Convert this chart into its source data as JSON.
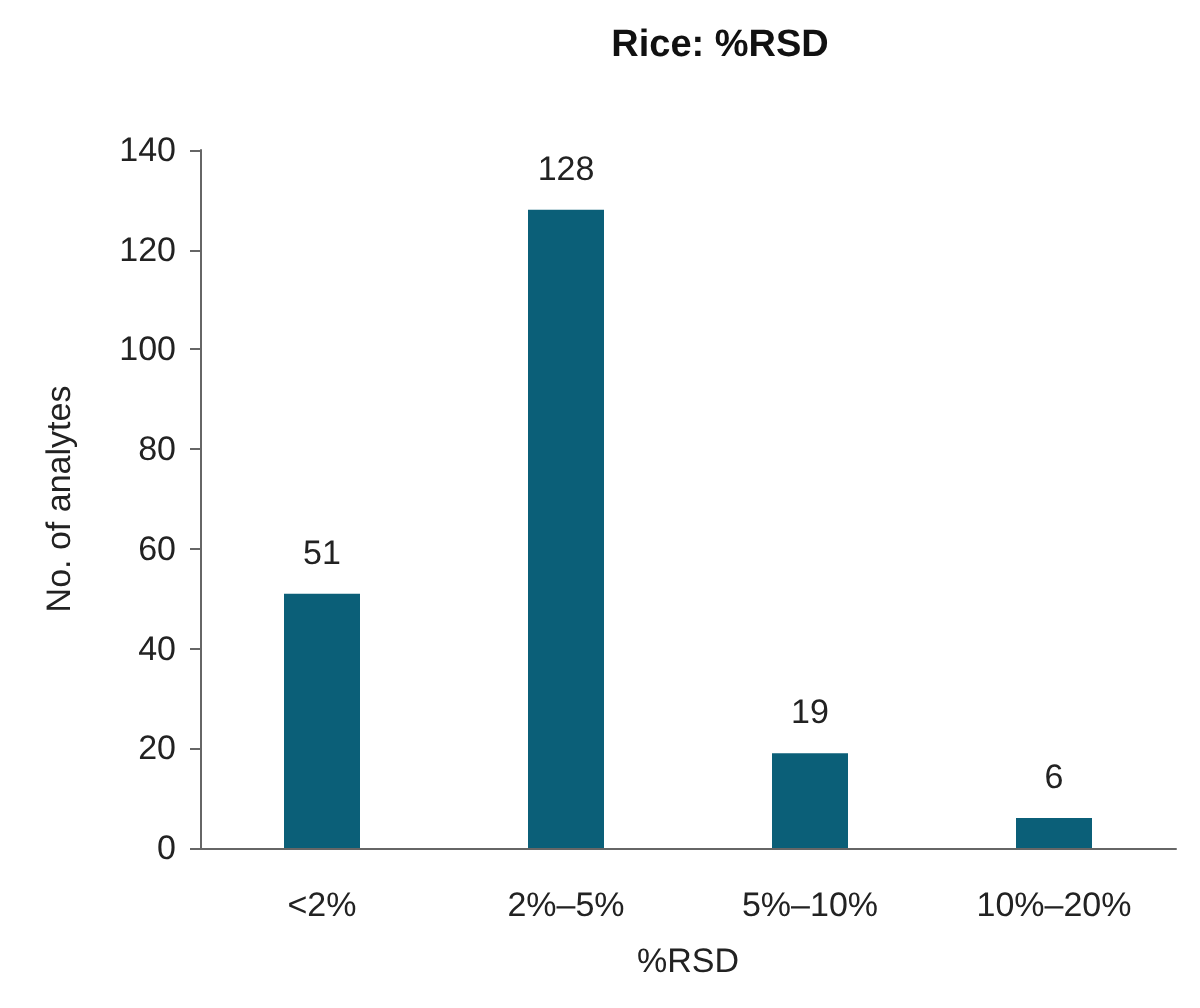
{
  "chart_data": {
    "type": "bar",
    "title": "Rice: %RSD",
    "xlabel": "%RSD",
    "ylabel": "No. of analytes",
    "categories": [
      "<2%",
      "2%–5%",
      "5%–10%",
      "10%–20%"
    ],
    "values": [
      51,
      128,
      19,
      6
    ],
    "color": "#0b5f78",
    "ylim": [
      0,
      140
    ],
    "yticks": [
      0,
      20,
      40,
      60,
      80,
      100,
      120,
      140
    ],
    "grid": false,
    "data_labels": true
  }
}
